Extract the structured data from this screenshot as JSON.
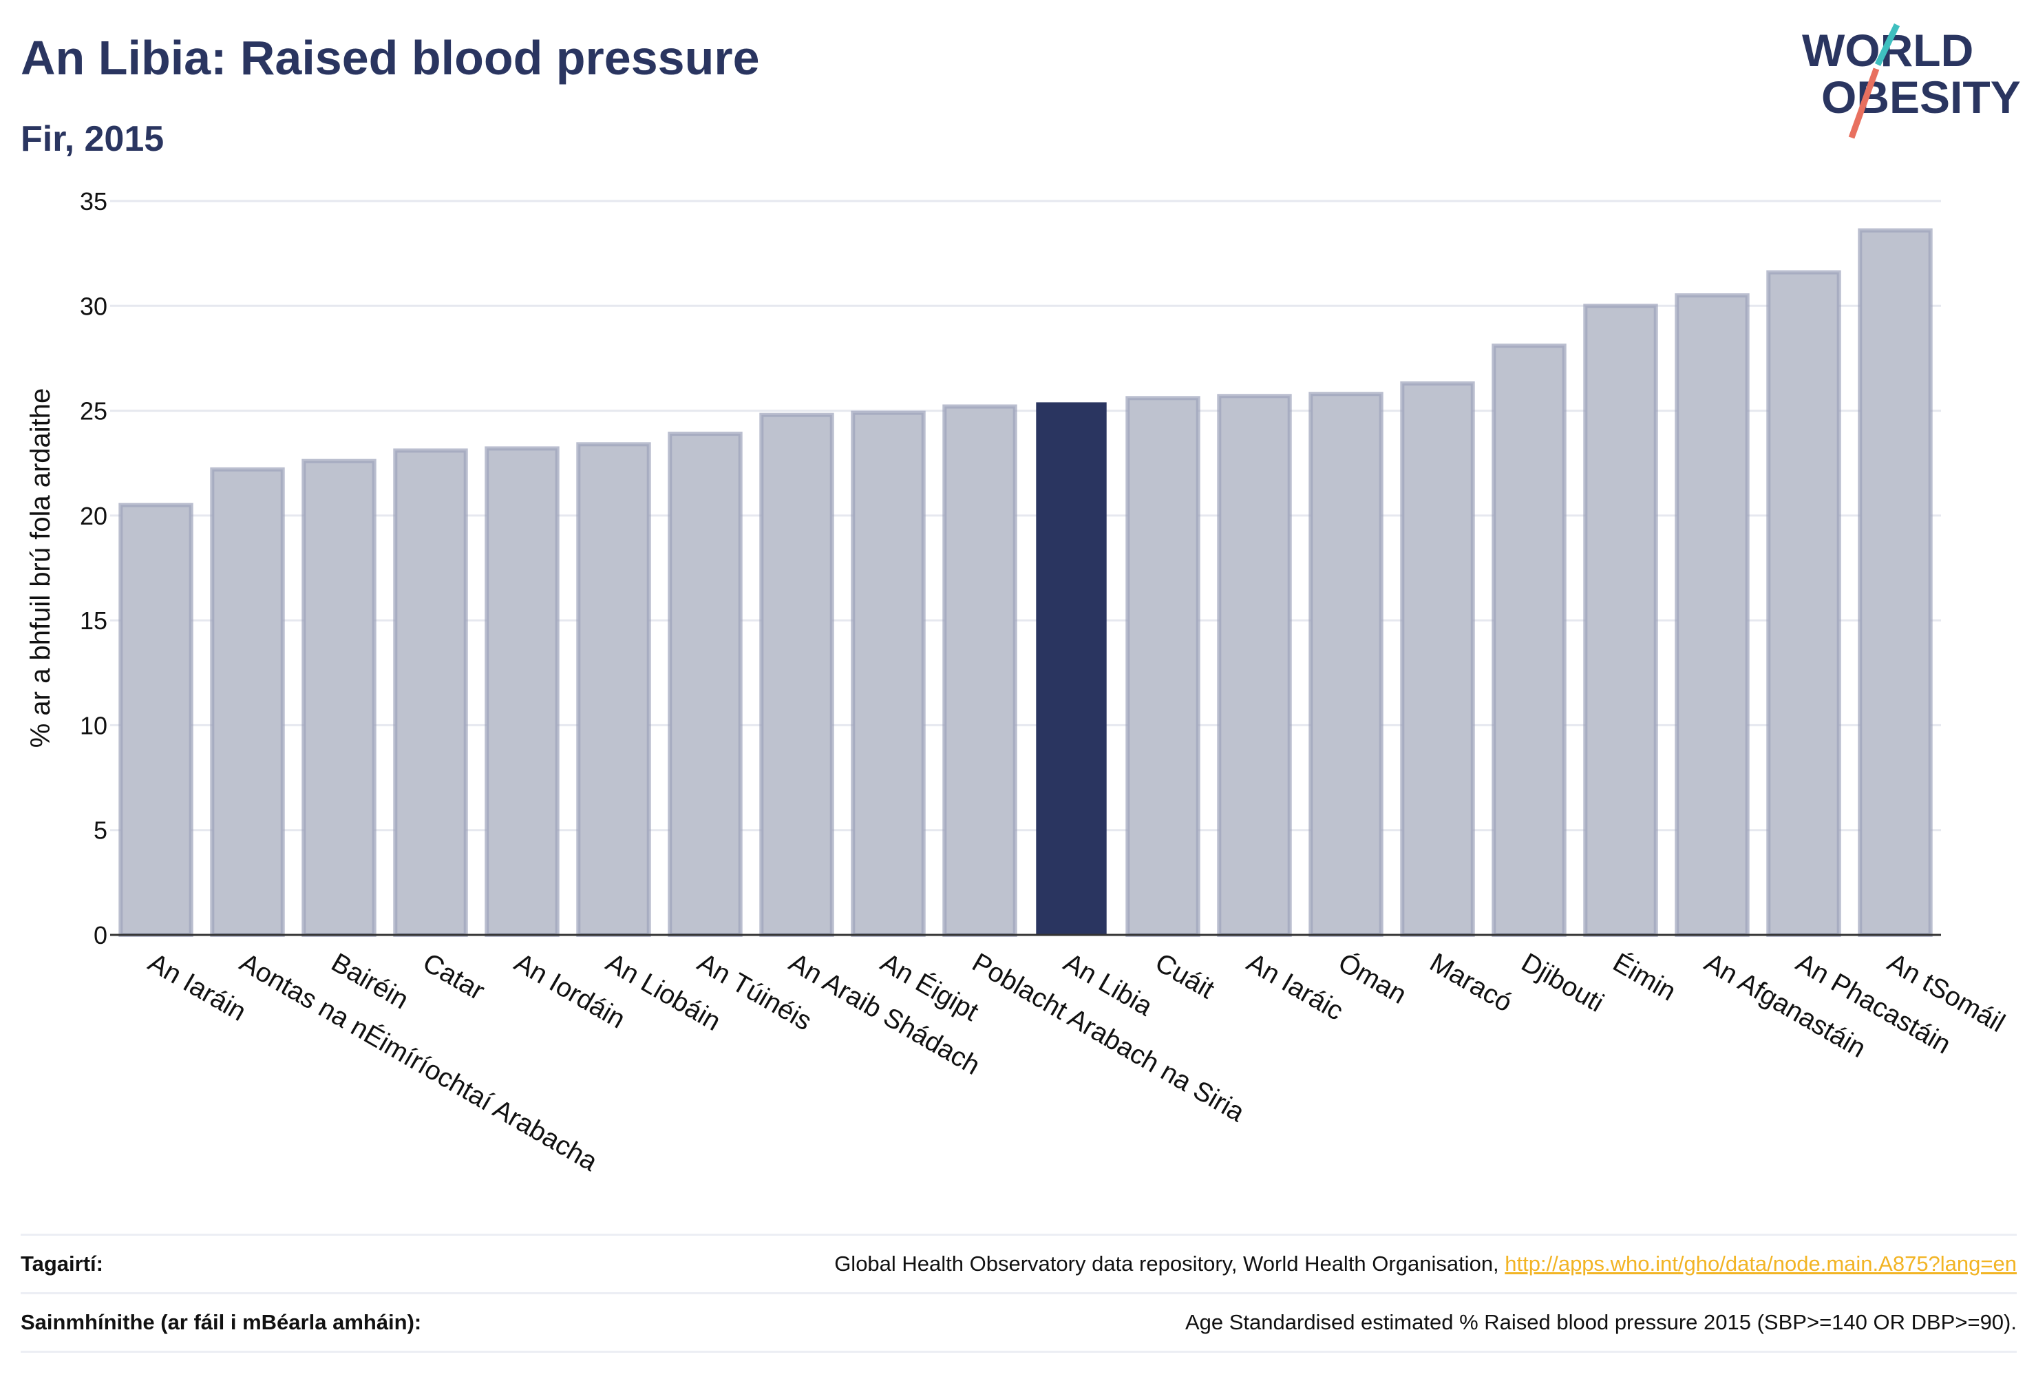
{
  "header": {
    "title": "An Libia: Raised blood pressure",
    "subtitle": "Fir, 2015"
  },
  "logo": {
    "line1": "WORLD",
    "line2": "OBESITY",
    "accent_teal": "#3fbfbf",
    "accent_red": "#e8705f",
    "text_color": "#2a3560"
  },
  "colors": {
    "bar": "#bec2cf",
    "bar_edge": "#9ca2bb",
    "highlight": "#2a3560",
    "grid": "#e6e8ef"
  },
  "chart_data": {
    "type": "bar",
    "title": "An Libia: Raised blood pressure",
    "subtitle": "Fir, 2015",
    "xlabel": "",
    "ylabel": "% ar a bhfuil brú fola ardaithe",
    "ylim": [
      0,
      35
    ],
    "yticks": [
      0,
      5,
      10,
      15,
      20,
      25,
      30,
      35
    ],
    "grid": true,
    "highlight": "An Libia",
    "categories": [
      "An Iaráin",
      "Aontas na nÉimíríochtaí Arabacha",
      "Bairéin",
      "Catar",
      "An Iordáin",
      "An Liobáin",
      "An Túinéis",
      "An Araib Shádach",
      "An Éigipt",
      "Poblacht Arabach na Siria",
      "An Libia",
      "Cuáit",
      "An Iaráic",
      "Óman",
      "Maracó",
      "Djibouti",
      "Éimin",
      "An Afganastáin",
      "An Phacastáin",
      "An tSomáil"
    ],
    "values": [
      20.5,
      22.2,
      22.6,
      23.1,
      23.2,
      23.4,
      23.9,
      24.8,
      24.9,
      25.2,
      25.4,
      25.6,
      25.7,
      25.8,
      26.3,
      28.1,
      30.0,
      30.5,
      31.6,
      33.6
    ]
  },
  "footer": {
    "references_label": "Tagairtí:",
    "references_text": "Global Health Observatory data repository, World Health Organisation, ",
    "references_link": "http://apps.who.int/gho/data/node.main.A875?lang=en",
    "definitions_label": "Sainmhínithe (ar fáil i mBéarla amháin):",
    "definitions_text": "Age Standardised estimated % Raised blood pressure 2015 (SBP>=140 OR DBP>=90)."
  }
}
